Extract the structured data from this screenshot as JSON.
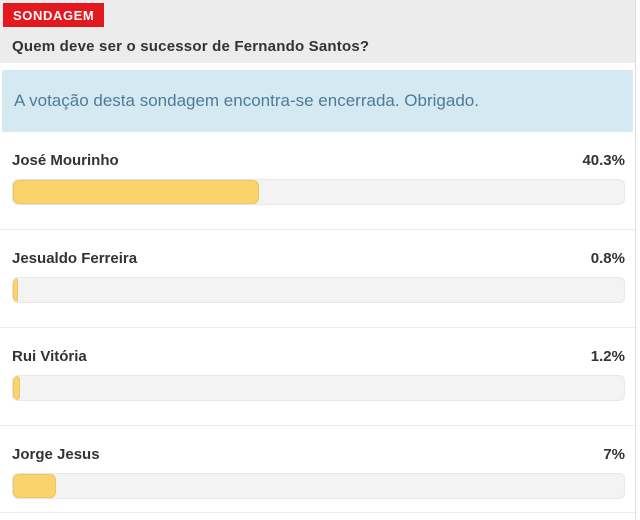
{
  "badge": {
    "label": "SONDAGEM"
  },
  "question": "Quem deve ser o sucessor de Fernando Santos?",
  "notice": "A votação desta sondagem encontra-se encerrada. Obrigado.",
  "colors": {
    "badge_bg": "#e3191f",
    "badge_text": "#ffffff",
    "header_bg": "#ececec",
    "notice_bg": "#d5e9f3",
    "notice_text": "#4e7b99",
    "bar_fill": "#fbd36d",
    "bar_track": "#f3f3f3",
    "text": "#333333"
  },
  "chart_data": {
    "type": "bar",
    "orientation": "horizontal",
    "title": "Quem deve ser o sucessor de Fernando Santos?",
    "categories": [
      "José Mourinho",
      "Jesualdo Ferreira",
      "Rui Vitória",
      "Jorge Jesus"
    ],
    "values": [
      40.3,
      0.8,
      1.2,
      7
    ],
    "value_labels": [
      "40.3%",
      "0.8%",
      "1.2%",
      "7%"
    ],
    "unit": "%",
    "xlim": [
      0,
      100
    ],
    "grid": false,
    "legend": false
  }
}
